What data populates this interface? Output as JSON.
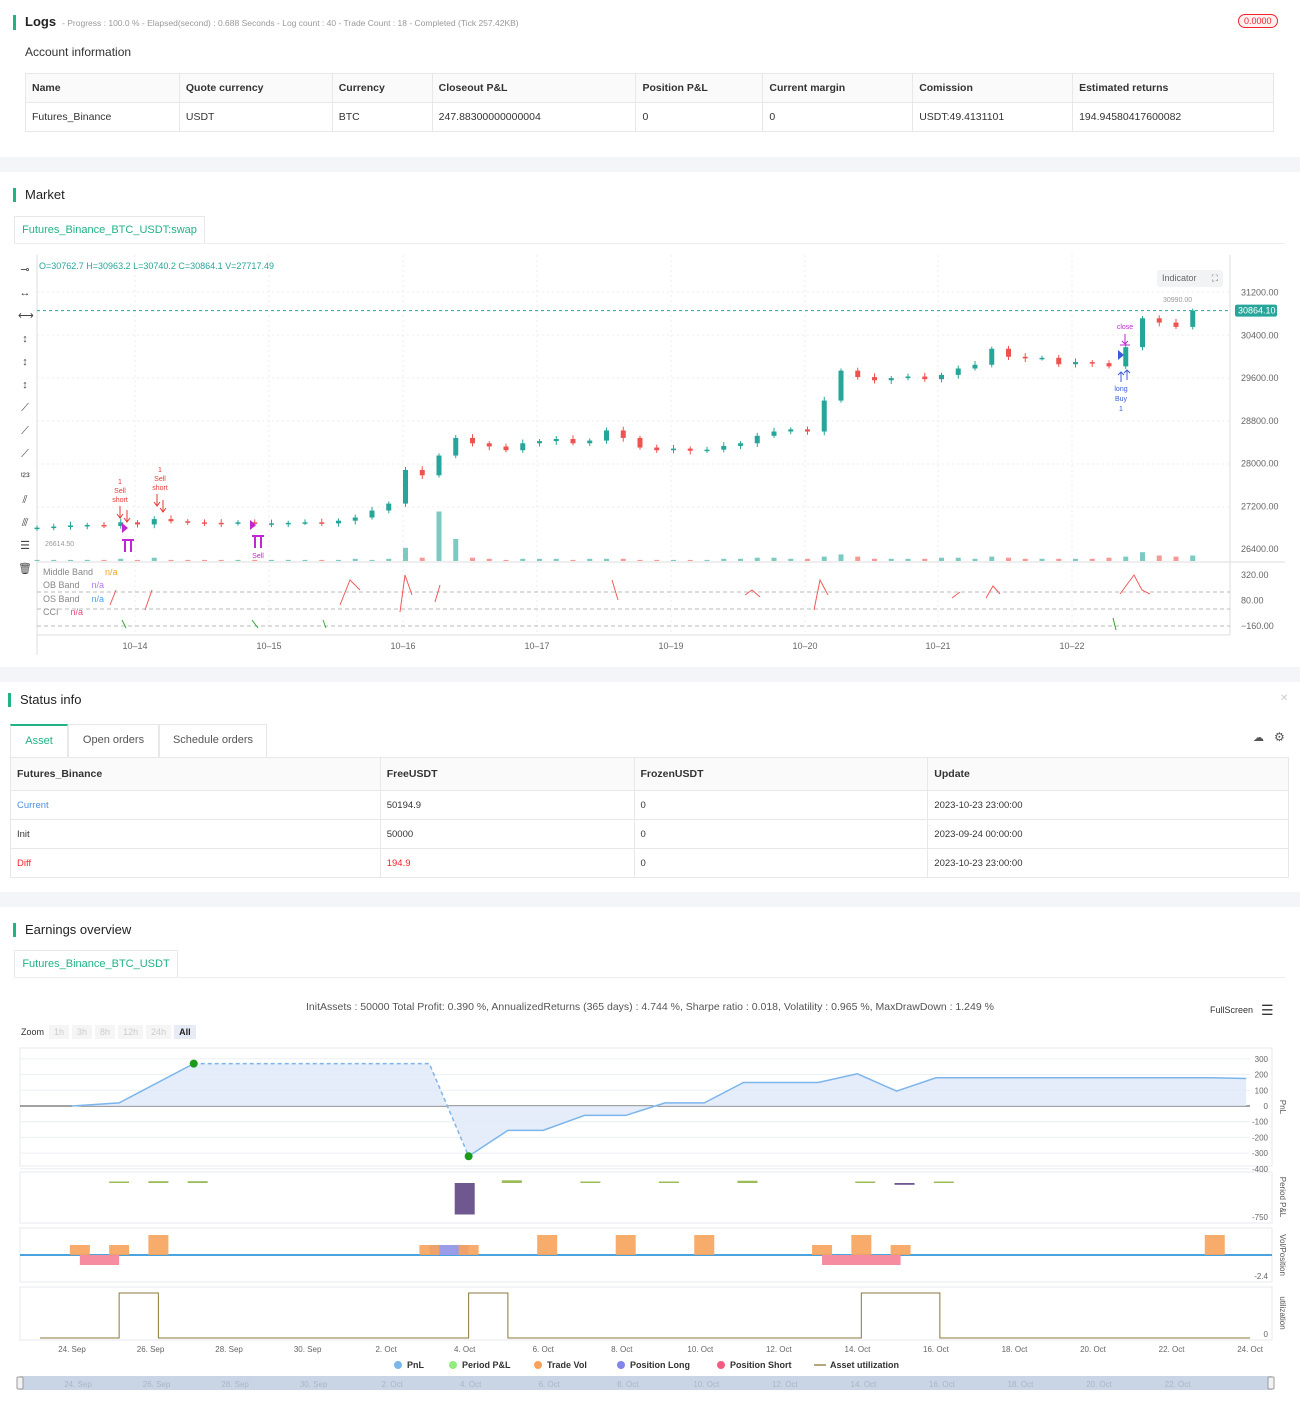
{
  "logs": {
    "title": "Logs",
    "summary": "- Progress : 100.0 % - Elapsed(second) : 0.688  Seconds - Log count : 40 - Trade Count : 18 - Completed (Tick 257.42KB)",
    "badge": "0.0000"
  },
  "account": {
    "title": "Account information",
    "headers": [
      "Name",
      "Quote currency",
      "Currency",
      "Closeout P&L",
      "Position P&L",
      "Current margin",
      "Comission",
      "Estimated returns"
    ],
    "row": [
      "Futures_Binance",
      "USDT",
      "BTC",
      "247.88300000000004",
      "0",
      "0",
      "USDT:49.4131101",
      "194.94580417600082"
    ]
  },
  "market": {
    "title": "Market",
    "tab": "Futures_Binance_BTC_USDT:swap",
    "ohlc": "O=30762.7 H=30963.2 L=30740.2 C=30864.1 V=27717.49",
    "indicator_btn": "Indicator",
    "last_price": "30864.10",
    "high_label": "30990.00",
    "low_label": "26614.50",
    "legend": [
      {
        "name": "Middle Band",
        "val": "n/a",
        "color": "#f5a623"
      },
      {
        "name": "OB Band",
        "val": "n/a",
        "color": "#b57aee"
      },
      {
        "name": "OS Band",
        "val": "n/a",
        "color": "#4aa3f0"
      },
      {
        "name": "CCI",
        "val": "n/a",
        "color": "#e8467c"
      }
    ],
    "annotations": {
      "sell1": "Sell",
      "short1": "short",
      "qty1": "1",
      "sell2": "Sell",
      "short2": "short",
      "qty2": "1",
      "close_sell": "Sell",
      "close_label": "close",
      "close2": "close",
      "long": "long",
      "buy": "Buy",
      "qty3": "1"
    }
  },
  "chart_data": [
    {
      "type": "candlestick",
      "start": "10-13 06:00",
      "interval_hours": 3,
      "closes": [
        26800,
        26820,
        26840,
        26850,
        26830,
        26900,
        26860,
        26960,
        26920,
        26900,
        26890,
        26880,
        26900,
        26870,
        26880,
        26890,
        26900,
        26880,
        26930,
        26990,
        27120,
        27250,
        27880,
        27780,
        28150,
        28480,
        28380,
        28320,
        28250,
        28380,
        28420,
        28460,
        28380,
        28430,
        28620,
        28480,
        28300,
        28250,
        28280,
        28240,
        28260,
        28330,
        28380,
        28520,
        28600,
        28640,
        28600,
        29180,
        29740,
        29620,
        29560,
        29600,
        29630,
        29580,
        29660,
        29780,
        29850,
        30150,
        30000,
        29970,
        29980,
        29860,
        29900,
        29880,
        29820,
        30180,
        30720,
        30640,
        30560,
        30864
      ],
      "volumes": [
        1,
        1,
        1,
        1,
        1,
        2,
        1,
        3,
        1,
        1,
        1,
        1,
        1,
        1,
        1,
        1,
        1,
        1,
        1,
        2,
        1,
        2,
        12,
        3,
        45,
        20,
        3,
        2,
        1,
        2,
        2,
        2,
        1,
        2,
        2,
        2,
        1,
        1,
        1,
        1,
        1,
        2,
        2,
        3,
        3,
        2,
        2,
        4,
        6,
        4,
        2,
        2,
        2,
        2,
        3,
        3,
        2,
        4,
        3,
        2,
        2,
        2,
        2,
        2,
        3,
        4,
        8,
        5,
        4,
        5
      ],
      "y_ticks": [
        "31200.00",
        "30400.00",
        "29600.00",
        "28800.00",
        "28000.00",
        "27200.00",
        "26400.00"
      ],
      "y_tick_values": [
        31200,
        30400,
        29600,
        28800,
        28000,
        27200,
        26400
      ],
      "x_ticks": [
        "10–14",
        "10–15",
        "10–16",
        "10–17",
        "10–19",
        "10–20",
        "10–21",
        "10–22"
      ],
      "cci_ticks": [
        "320.00",
        "80.00",
        "−160.00"
      ],
      "cci_tick_values": [
        320,
        80,
        -160
      ],
      "cci_bands": [
        160,
        0,
        -160
      ]
    },
    {
      "type": "line",
      "title": "InitAssets : 50000 Total Profit: 0.390 %, AnnualizedReturns (365 days) : 4.744 %, Sharpe ratio : 0.018, Volatility : 0.965 %, MaxDrawDown : 1.249 %",
      "x_ticks": [
        "24. Sep",
        "26. Sep",
        "28. Sep",
        "30. Sep",
        "2. Oct",
        "4. Oct",
        "6. Oct",
        "8. Oct",
        "10. Oct",
        "12. Oct",
        "14. Oct",
        "16. Oct",
        "18. Oct",
        "20. Oct",
        "22. Oct",
        "24. Oct"
      ],
      "nav_ticks": [
        "24. Sep",
        "26. Sep",
        "28. Sep",
        "30. Sep",
        "2. Oct",
        "4. Oct",
        "6. Oct",
        "8. Oct",
        "10. Oct",
        "12. Oct",
        "14. Oct",
        "16. Oct",
        "18. Oct",
        "20. Oct",
        "22. Oct"
      ],
      "pnl_ticks": [
        "300",
        "200",
        "100",
        "0",
        "-100",
        "-200",
        "-300",
        "-400"
      ],
      "pnl_tick_values": [
        300,
        200,
        100,
        0,
        -100,
        -200,
        -300,
        -400
      ],
      "pnl": [
        [
          0,
          0
        ],
        [
          1.2,
          20
        ],
        [
          3.1,
          270
        ],
        [
          9.1,
          270
        ],
        [
          10.1,
          -320
        ],
        [
          11.1,
          -155
        ],
        [
          12,
          -155
        ],
        [
          13.05,
          -60
        ],
        [
          14.1,
          -60
        ],
        [
          15.1,
          20
        ],
        [
          16.1,
          20
        ],
        [
          17.1,
          150
        ],
        [
          19,
          150
        ],
        [
          20,
          205
        ],
        [
          21,
          95
        ],
        [
          22,
          180
        ],
        [
          29,
          180
        ],
        [
          29.9,
          175
        ]
      ],
      "period_pnl": [
        [
          1.2,
          5
        ],
        [
          2.2,
          40
        ],
        [
          3.2,
          40
        ],
        [
          10,
          -700
        ],
        [
          11.2,
          60
        ],
        [
          13.2,
          30
        ],
        [
          15.2,
          30
        ],
        [
          17.2,
          50
        ],
        [
          20.2,
          20
        ],
        [
          21.2,
          -40
        ],
        [
          22.2,
          30
        ]
      ],
      "period_label_min": "-750",
      "trade_vol": [
        [
          0.2,
          1
        ],
        [
          1.2,
          1
        ],
        [
          2.2,
          2
        ],
        [
          9.1,
          1
        ],
        [
          10.1,
          1
        ],
        [
          12.1,
          2
        ],
        [
          14.1,
          2
        ],
        [
          16.1,
          2
        ],
        [
          19.1,
          1
        ],
        [
          20.1,
          2
        ],
        [
          21.1,
          1
        ],
        [
          29.1,
          2
        ]
      ],
      "position_long": [
        [
          9.1,
          10.1,
          1
        ]
      ],
      "position_short": [
        [
          0.2,
          1.2,
          -1
        ],
        [
          19.1,
          21.1,
          -1
        ]
      ],
      "vol_label_min": "-2.4",
      "utilization": [
        [
          1.2,
          2.2
        ],
        [
          10.1,
          11.1
        ],
        [
          20.1,
          22.1
        ]
      ],
      "util_label": "0",
      "axis_titles": [
        "PnL",
        "Period P&L",
        "Vol/Position",
        "utilization"
      ],
      "legend": [
        {
          "name": "PnL",
          "color": "#7cb5ec"
        },
        {
          "name": "Period P&L",
          "color": "#90ed7d"
        },
        {
          "name": "Trade Vol",
          "color": "#f7a35c"
        },
        {
          "name": "Position Long",
          "color": "#8085e9"
        },
        {
          "name": "Position Short",
          "color": "#f15c80"
        },
        {
          "name": "Asset utilization",
          "color": "#b5a77a"
        }
      ]
    }
  ],
  "status": {
    "title": "Status info",
    "tabs": [
      "Asset",
      "Open orders",
      "Schedule orders"
    ],
    "headers": [
      "Futures_Binance",
      "FreeUSDT",
      "FrozenUSDT",
      "Update"
    ],
    "rows": [
      [
        "Current",
        "50194.9",
        "0",
        "2023-10-23 23:00:00"
      ],
      [
        "Init",
        "50000",
        "0",
        "2023-09-24 00:00:00"
      ],
      [
        "Diff",
        "194.9",
        "0",
        "2023-10-23 23:00:00"
      ]
    ]
  },
  "earnings": {
    "title": "Earnings overview",
    "tab": "Futures_Binance_BTC_USDT",
    "zoom_label": "Zoom",
    "zoom_opts": [
      "1h",
      "3h",
      "8h",
      "12h",
      "24h",
      "All"
    ],
    "fullscreen": "FullScreen"
  },
  "colors": {
    "accent": "#1fb386",
    "up": "#26a69a",
    "down": "#ef5350",
    "red": "#f5222d",
    "blue": "#4a90e2"
  }
}
